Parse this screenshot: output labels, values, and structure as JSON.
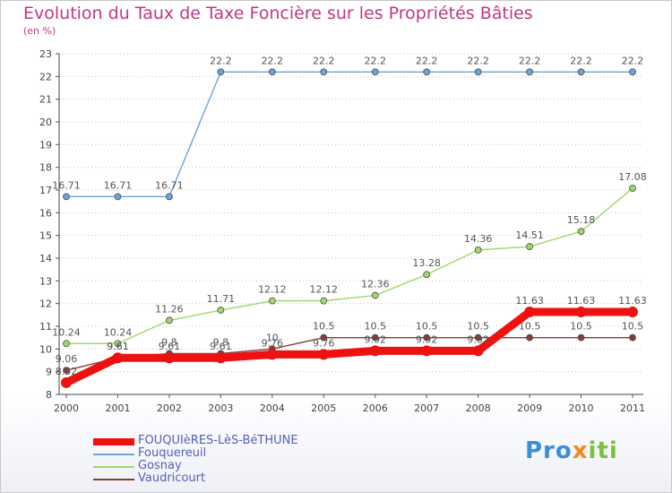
{
  "title": "Evolution du Taux de Taxe Foncière sur les Propriétés Bâties",
  "subtitle": "(en %)",
  "logo": {
    "part1": "Pro",
    "part2": "x",
    "part3": "iti"
  },
  "chart_data": {
    "type": "line",
    "x": [
      "2000",
      "2001",
      "2002",
      "2003",
      "2004",
      "2005",
      "2006",
      "2007",
      "2008",
      "2009",
      "2010",
      "2011"
    ],
    "ylim": [
      8,
      23
    ],
    "yticks": [
      8,
      9,
      10,
      11,
      12,
      13,
      14,
      15,
      16,
      17,
      18,
      19,
      20,
      21,
      22,
      23
    ],
    "grid": "horizontal dotted",
    "legend": "bottom-left",
    "series": [
      {
        "name": "FOUQUIèRES-LèS-BéTHUNE",
        "color": "#ee1111",
        "highlight": true,
        "values": [
          8.52,
          9.61,
          9.61,
          9.61,
          9.76,
          9.76,
          9.92,
          9.92,
          9.92,
          11.63,
          11.63,
          11.63
        ],
        "labels": [
          "8.52",
          "9.61",
          "9.61",
          "9.61",
          "9.76",
          "9.76",
          "9.92",
          "9.92",
          "9.92",
          "11.63",
          "11.63",
          "11.63"
        ]
      },
      {
        "name": "Fouquereuil",
        "color": "#6fa3d6",
        "values": [
          16.71,
          16.71,
          16.71,
          22.2,
          22.2,
          22.2,
          22.2,
          22.2,
          22.2,
          22.2,
          22.2,
          22.2
        ],
        "labels": [
          "16.71",
          "16.71",
          "16.71",
          "22.2",
          "22.2",
          "22.2",
          "22.2",
          "22.2",
          "22.2",
          "22.2",
          "22.2",
          "22.2"
        ]
      },
      {
        "name": "Gosnay",
        "color": "#9ed86a",
        "values": [
          10.24,
          10.24,
          11.26,
          11.71,
          12.12,
          12.12,
          12.36,
          13.28,
          14.36,
          14.51,
          15.18,
          17.08
        ],
        "labels": [
          "10.24",
          "10.24",
          "11.26",
          "11.71",
          "12.12",
          "12.12",
          "12.36",
          "13.28",
          "14.36",
          "14.51",
          "15.18",
          "17.08"
        ]
      },
      {
        "name": "Vaudricourt",
        "color": "#8a3a3a",
        "values": [
          9.06,
          9.61,
          9.8,
          9.8,
          10.0,
          10.5,
          10.5,
          10.5,
          10.5,
          10.5,
          10.5,
          10.5
        ],
        "labels": [
          "9.06",
          "9.61",
          "9.8",
          "9.8",
          "10",
          "10.5",
          "10.5",
          "10.5",
          "10.5",
          "10.5",
          "10.5",
          "10.5"
        ]
      }
    ]
  }
}
